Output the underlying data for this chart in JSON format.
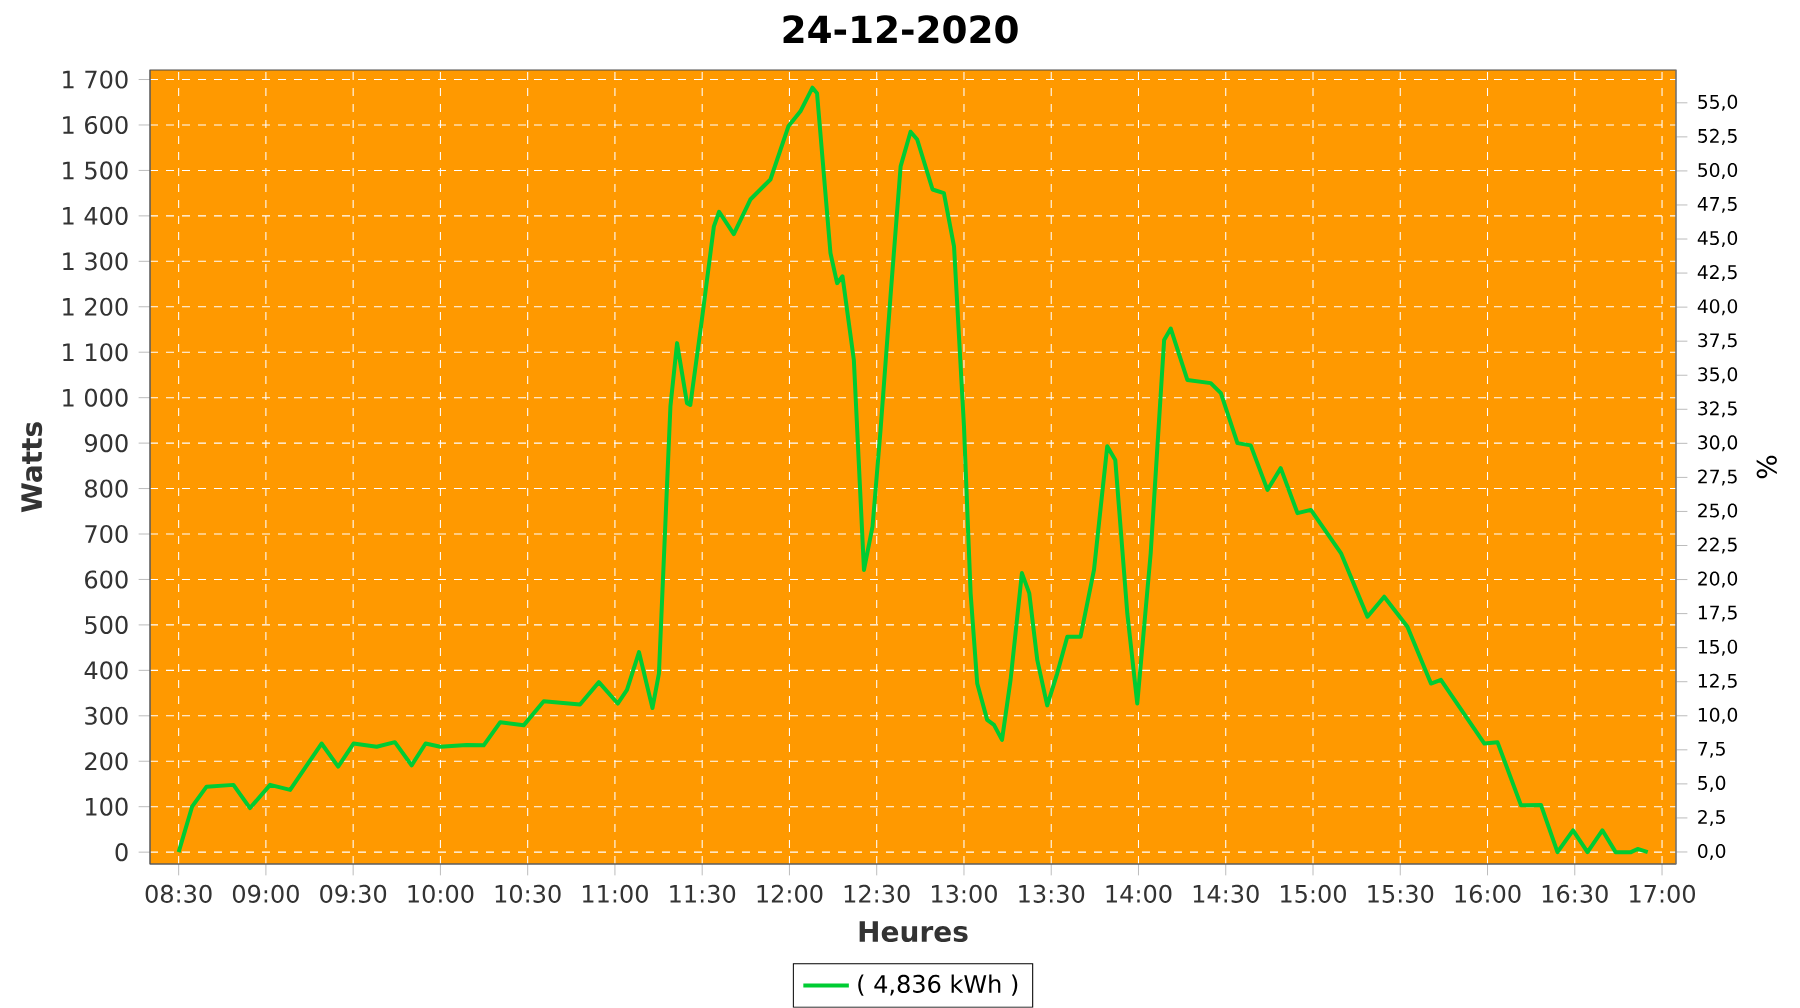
{
  "chart_data": {
    "type": "line",
    "title": "24-12-2020",
    "xlabel": "Heures",
    "ylabel": "Watts",
    "y2label": "%",
    "x": [
      8.5,
      8.577,
      8.66,
      8.814,
      8.909,
      9.024,
      9.139,
      9.319,
      9.414,
      9.502,
      9.635,
      9.739,
      9.835,
      9.915,
      9.999,
      10.151,
      10.248,
      10.343,
      10.477,
      10.592,
      10.8,
      10.908,
      11.016,
      11.069,
      11.138,
      11.215,
      11.252,
      11.318,
      11.356,
      11.413,
      11.432,
      11.498,
      11.567,
      11.597,
      11.681,
      11.776,
      11.891,
      11.994,
      12.063,
      12.132,
      12.158,
      12.235,
      12.273,
      12.304,
      12.369,
      12.427,
      12.476,
      12.522,
      12.579,
      12.637,
      12.694,
      12.732,
      12.82,
      12.885,
      12.943,
      13.0,
      13.038,
      13.076,
      13.133,
      13.172,
      13.218,
      13.267,
      13.332,
      13.374,
      13.42,
      13.477,
      13.534,
      13.592,
      13.668,
      13.745,
      13.821,
      13.867,
      13.936,
      13.993,
      14.07,
      14.147,
      14.185,
      14.28,
      14.414,
      14.472,
      14.567,
      14.643,
      14.739,
      14.815,
      14.911,
      14.988,
      15.16,
      15.312,
      15.408,
      15.541,
      15.676,
      15.733,
      15.982,
      16.057,
      16.192,
      16.306,
      16.401,
      16.49,
      16.573,
      16.658,
      16.734,
      16.822,
      16.86,
      16.918
    ],
    "series": [
      {
        "name": "( 4,836 kWh )",
        "color": "#00cc33",
        "values": [
          0,
          100,
          144,
          148,
          97,
          148,
          137,
          239,
          188,
          239,
          232,
          242,
          191,
          239,
          232,
          236,
          235,
          286,
          279,
          332,
          325,
          374,
          327,
          357,
          440,
          317,
          393,
          981,
          1120,
          988,
          984,
          1171,
          1377,
          1409,
          1360,
          1436,
          1480,
          1597,
          1630,
          1682,
          1670,
          1318,
          1252,
          1267,
          1083,
          621,
          716,
          929,
          1223,
          1509,
          1585,
          1568,
          1458,
          1450,
          1333,
          937,
          570,
          371,
          291,
          280,
          247,
          379,
          614,
          570,
          423,
          323,
          393,
          474,
          474,
          621,
          893,
          863,
          525,
          327,
          658,
          1127,
          1152,
          1039,
          1032,
          1010,
          900,
          895,
          797,
          845,
          746,
          753,
          658,
          518,
          562,
          496,
          371,
          379,
          239,
          242,
          103,
          104,
          0,
          48,
          0,
          48,
          0,
          0,
          7,
          0
        ]
      }
    ],
    "xlim": [
      8.336,
      17.08
    ],
    "ylim": [
      -26,
      1721
    ],
    "y2lim": [
      -0.88,
      57.41
    ],
    "xticks": [
      {
        "value": 8.5,
        "label": "08:30"
      },
      {
        "value": 9,
        "label": "09:00"
      },
      {
        "value": 9.5,
        "label": "09:30"
      },
      {
        "value": 10,
        "label": "10:00"
      },
      {
        "value": 10.5,
        "label": "10:30"
      },
      {
        "value": 11,
        "label": "11:00"
      },
      {
        "value": 11.5,
        "label": "11:30"
      },
      {
        "value": 12,
        "label": "12:00"
      },
      {
        "value": 12.5,
        "label": "12:30"
      },
      {
        "value": 13,
        "label": "13:00"
      },
      {
        "value": 13.5,
        "label": "13:30"
      },
      {
        "value": 14,
        "label": "14:00"
      },
      {
        "value": 14.5,
        "label": "14:30"
      },
      {
        "value": 15,
        "label": "15:00"
      },
      {
        "value": 15.5,
        "label": "15:30"
      },
      {
        "value": 16,
        "label": "16:00"
      },
      {
        "value": 16.5,
        "label": "16:30"
      },
      {
        "value": 17,
        "label": "17:00"
      }
    ],
    "yticks": [
      0,
      100,
      200,
      300,
      400,
      500,
      600,
      700,
      800,
      900,
      {
        "value": 1000,
        "label": "1 000"
      },
      {
        "value": 1100,
        "label": "1 100"
      },
      {
        "value": 1200,
        "label": "1 200"
      },
      {
        "value": 1300,
        "label": "1 300"
      },
      {
        "value": 1400,
        "label": "1 400"
      },
      {
        "value": 1500,
        "label": "1 500"
      },
      {
        "value": 1600,
        "label": "1 600"
      },
      {
        "value": 1700,
        "label": "1 700"
      }
    ],
    "y2ticks": [
      {
        "value": 0,
        "label": "0,0"
      },
      {
        "value": 2.5,
        "label": "2,5"
      },
      {
        "value": 5,
        "label": "5,0"
      },
      {
        "value": 7.5,
        "label": "7,5"
      },
      {
        "value": 10,
        "label": "10,0"
      },
      {
        "value": 12.5,
        "label": "12,5"
      },
      {
        "value": 15,
        "label": "15,0"
      },
      {
        "value": 17.5,
        "label": "17,5"
      },
      {
        "value": 20,
        "label": "20,0"
      },
      {
        "value": 22.5,
        "label": "22,5"
      },
      {
        "value": 25,
        "label": "25,0"
      },
      {
        "value": 27.5,
        "label": "27,5"
      },
      {
        "value": 30,
        "label": "30,0"
      },
      {
        "value": 32.5,
        "label": "32,5"
      },
      {
        "value": 35,
        "label": "35,0"
      },
      {
        "value": 37.5,
        "label": "37,5"
      },
      {
        "value": 40,
        "label": "40,0"
      },
      {
        "value": 42.5,
        "label": "42,5"
      },
      {
        "value": 45,
        "label": "45,0"
      },
      {
        "value": 47.5,
        "label": "47,5"
      },
      {
        "value": 50,
        "label": "50,0"
      },
      {
        "value": 52.5,
        "label": "52,5"
      },
      {
        "value": 55,
        "label": "55,0"
      }
    ],
    "grid": true,
    "legend": "bottom",
    "marker": "none",
    "line_style": "solid"
  }
}
